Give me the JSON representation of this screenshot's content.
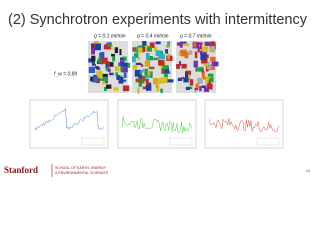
{
  "title": "(2) Synchrotron experiments with intermittency",
  "panels": [
    {
      "label": "q = 0.1 ml/min"
    },
    {
      "label": "q = 0.4 ml/min"
    },
    {
      "label": "q = 0.7 ml/min"
    }
  ],
  "fw_label": "f_w = 0.89",
  "footer": {
    "brand": "Stanford",
    "school_line1": "SCHOOL OF EARTH, ENERGY",
    "school_line2": "& ENVIRONMENTAL SCIENCES"
  },
  "page_number": "16"
}
